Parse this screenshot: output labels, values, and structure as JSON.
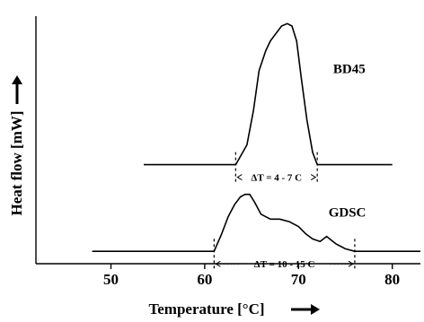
{
  "chart_data": {
    "type": "line",
    "xlabel": "Temperature [°C]",
    "ylabel": "Heat flow [mW]",
    "xlim": [
      42,
      83
    ],
    "ylim": [
      0,
      1.0
    ],
    "xticks": [
      50,
      60,
      70,
      80
    ],
    "grid": false,
    "legend": "none",
    "series": [
      {
        "name": "BD45",
        "x": [
          53.5,
          63.3,
          64.5,
          65.2,
          65.8,
          66.5,
          67.0,
          67.6,
          68.2,
          68.8,
          69.3,
          69.8,
          70.3,
          70.9,
          71.5,
          72.0,
          80.0
        ],
        "y": [
          0.4,
          0.4,
          0.48,
          0.62,
          0.78,
          0.86,
          0.9,
          0.93,
          0.96,
          0.97,
          0.96,
          0.9,
          0.75,
          0.58,
          0.45,
          0.4,
          0.4
        ]
      },
      {
        "name": "GDSC",
        "x": [
          48.0,
          61.0,
          61.8,
          62.5,
          63.2,
          63.8,
          64.3,
          64.8,
          65.3,
          66.0,
          67.0,
          68.0,
          69.0,
          70.0,
          70.8,
          71.5,
          72.3,
          73.0,
          74.0,
          75.0,
          76.0,
          83.0
        ],
        "y": [
          0.05,
          0.05,
          0.12,
          0.19,
          0.24,
          0.27,
          0.28,
          0.28,
          0.25,
          0.2,
          0.18,
          0.18,
          0.17,
          0.15,
          0.12,
          0.1,
          0.09,
          0.11,
          0.08,
          0.06,
          0.05,
          0.05
        ]
      }
    ],
    "annotations": [
      {
        "series": "BD45",
        "text": "ΔT = 4 - 7 C",
        "from": 63.3,
        "to": 72.0
      },
      {
        "series": "GDSC",
        "text": "ΔT = 10 - 15 C",
        "from": 61.0,
        "to": 76.0
      }
    ]
  }
}
